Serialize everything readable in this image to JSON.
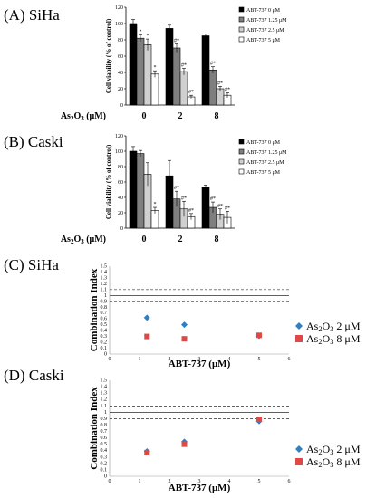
{
  "panels": [
    {
      "label": "(A) SiHa"
    },
    {
      "label": "(B) Caski"
    },
    {
      "label": "(C) SiHa"
    },
    {
      "label": "(D) Caski"
    }
  ],
  "colors": {
    "bar_series": [
      "#000000",
      "#7f7f7f",
      "#d0d0d0",
      "#ffffff"
    ],
    "as2": "#2e7fc4",
    "as8": "#e04848"
  },
  "chart_data": [
    {
      "type": "bar",
      "title": "",
      "ylabel": "Cell viability (% of control)",
      "xlabel": "As2O3 (μM)",
      "categories": [
        "0",
        "2",
        "8"
      ],
      "ylim": [
        0,
        120
      ],
      "yticks": [
        0,
        20,
        40,
        60,
        80,
        100,
        120
      ],
      "series": [
        {
          "name": "ABT-737 0 μM",
          "values": [
            100,
            94,
            85
          ],
          "err": [
            5,
            4,
            2
          ]
        },
        {
          "name": "ABT-737 1.25 μM",
          "values": [
            82,
            70,
            43
          ],
          "err": [
            4,
            5,
            4
          ]
        },
        {
          "name": "ABT-737 2.5 μM",
          "values": [
            74,
            41,
            20
          ],
          "err": [
            7,
            4,
            3
          ]
        },
        {
          "name": "ABT-737 5 μM",
          "values": [
            38,
            10,
            12
          ],
          "err": [
            4,
            2,
            3
          ]
        }
      ],
      "sig": [
        [
          "",
          "*",
          "*",
          "*"
        ],
        [
          "",
          "#*",
          "#*",
          "#*"
        ],
        [
          "",
          "#*",
          "#*",
          "#*"
        ]
      ]
    },
    {
      "type": "bar",
      "title": "",
      "ylabel": "Cell viability (% of control)",
      "xlabel": "As2O3 (μM)",
      "categories": [
        "0",
        "2",
        "8"
      ],
      "ylim": [
        0,
        120
      ],
      "yticks": [
        0,
        20,
        40,
        60,
        80,
        100,
        120
      ],
      "series": [
        {
          "name": "ABT-737 0 μM",
          "values": [
            100,
            68,
            53
          ],
          "err": [
            6,
            20,
            3
          ]
        },
        {
          "name": "ABT-737 1.25 μM",
          "values": [
            97,
            38,
            27
          ],
          "err": [
            4,
            10,
            7
          ]
        },
        {
          "name": "ABT-737 2.5 μM",
          "values": [
            70,
            25,
            18
          ],
          "err": [
            15,
            10,
            7
          ]
        },
        {
          "name": "ABT-737 5 μM",
          "values": [
            23,
            15,
            14
          ],
          "err": [
            4,
            4,
            8
          ]
        }
      ],
      "sig": [
        [
          "",
          "",
          "",
          "*"
        ],
        [
          "",
          "#*",
          "#*",
          "#*"
        ],
        [
          "",
          "#*",
          "#*",
          "#*"
        ]
      ]
    },
    {
      "type": "scatter",
      "title": "",
      "ylabel": "Combination Index",
      "xlabel": "ABT-737 (μM)",
      "xlim": [
        0,
        6
      ],
      "ylim": [
        0,
        1.5
      ],
      "xticks": [
        0,
        1,
        2,
        3,
        4,
        5,
        6
      ],
      "yticks": [
        "0",
        "0.1",
        "0.2",
        "0.3",
        "0.4",
        "0.5",
        "0.6",
        "0.7",
        "0.8",
        "0.9",
        "1",
        "1.1",
        "1.2",
        "1.3",
        "1.4",
        "1.5"
      ],
      "reflines": [
        0.9,
        1.0,
        1.1
      ],
      "series": [
        {
          "name": "As2O3 2 μM",
          "marker": "diamond",
          "x": [
            1.25,
            2.5,
            5
          ],
          "y": [
            0.62,
            0.5,
            0.31
          ]
        },
        {
          "name": "As2O3 8 μM",
          "marker": "square",
          "x": [
            1.25,
            2.5,
            5
          ],
          "y": [
            0.3,
            0.26,
            0.32
          ]
        }
      ]
    },
    {
      "type": "scatter",
      "title": "",
      "ylabel": "Combination Index",
      "xlabel": "ABT-737 (μM)",
      "xlim": [
        0,
        6
      ],
      "ylim": [
        0,
        1.5
      ],
      "xticks": [
        0,
        1,
        2,
        3,
        4,
        5,
        6
      ],
      "yticks": [
        "0",
        "0.1",
        "0.2",
        "0.3",
        "0.4",
        "0.5",
        "0.6",
        "0.7",
        "0.8",
        "0.9",
        "1",
        "1.1",
        "1.2",
        "1.3",
        "1.4",
        "1.5"
      ],
      "reflines": [
        0.9,
        1.0,
        1.1
      ],
      "series": [
        {
          "name": "As2O3 2 μM",
          "marker": "diamond",
          "x": [
            1.25,
            2.5,
            5
          ],
          "y": [
            0.39,
            0.54,
            0.86
          ]
        },
        {
          "name": "As2O3 8 μM",
          "marker": "square",
          "x": [
            1.25,
            2.5,
            5
          ],
          "y": [
            0.37,
            0.5,
            0.89
          ]
        }
      ]
    }
  ]
}
